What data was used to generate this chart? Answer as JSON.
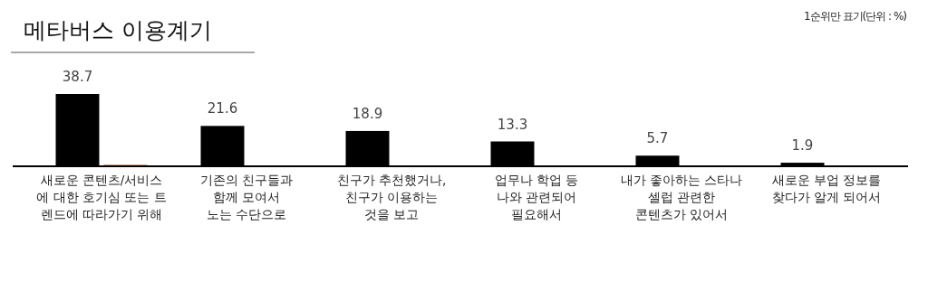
{
  "chart_data": {
    "type": "bar",
    "title": "메타버스 이용계기",
    "subtitle": "1순위만 표기(단위 : %)",
    "categories": [
      "새로운 콘텐츠/서비스\n에 대한 호기심 또는 트\n렌드에 따라가기 위해",
      "기존의 친구들과\n함께 모여서\n노는 수단으로",
      "친구가 추천했거나,\n친구가 이용하는\n것을 보고",
      "업무나 학업 등\n나와 관련되어\n필요해서",
      "내가 좋아하는 스타나\n셀럽 관련한\n콘텐츠가 있어서",
      "새로운 부업 정보를\n찾다가 알게 되어서"
    ],
    "series": [
      {
        "color": "#000000",
        "values": [
          38.7,
          21.6,
          18.9,
          13.3,
          5.7,
          1.9
        ],
        "value_labels": [
          "38.7",
          "21.6",
          "18.9",
          "13.3",
          "5.7",
          "1.9"
        ]
      },
      {
        "color": "#d2691e",
        "values": [
          0.8,
          null,
          null,
          null,
          null,
          null
        ],
        "value_labels": [
          null,
          null,
          null,
          null,
          null,
          null
        ]
      }
    ]
  }
}
